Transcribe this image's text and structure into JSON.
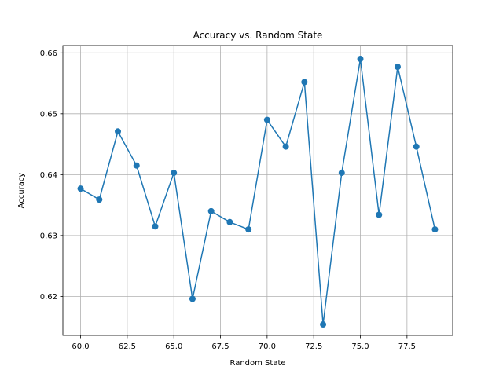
{
  "chart_data": {
    "type": "line",
    "title": "Accuracy vs. Random State",
    "xlabel": "Random State",
    "ylabel": "Accuracy",
    "x": [
      60,
      61,
      62,
      63,
      64,
      65,
      66,
      67,
      68,
      69,
      70,
      71,
      72,
      73,
      74,
      75,
      76,
      77,
      78,
      79
    ],
    "series": [
      {
        "values": [
          0.6377,
          0.6359,
          0.6471,
          0.6415,
          0.6315,
          0.6403,
          0.6196,
          0.634,
          0.6322,
          0.631,
          0.649,
          0.6446,
          0.6552,
          0.6154,
          0.6403,
          0.659,
          0.6334,
          0.6577,
          0.6446,
          0.631
        ],
        "color": "#1f77b4",
        "marker": "circle"
      }
    ],
    "xlim": [
      59.05,
      79.95
    ],
    "ylim": [
      0.6136,
      0.6612
    ],
    "xticks": [
      60.0,
      62.5,
      65.0,
      67.5,
      70.0,
      72.5,
      75.0,
      77.5
    ],
    "xtick_labels": [
      "60.0",
      "62.5",
      "65.0",
      "67.5",
      "70.0",
      "72.5",
      "75.0",
      "77.5"
    ],
    "yticks": [
      0.62,
      0.63,
      0.64,
      0.65,
      0.66
    ],
    "ytick_labels": [
      "0.62",
      "0.63",
      "0.64",
      "0.65",
      "0.66"
    ],
    "grid": true,
    "grid_color": "#b0b0b0"
  }
}
